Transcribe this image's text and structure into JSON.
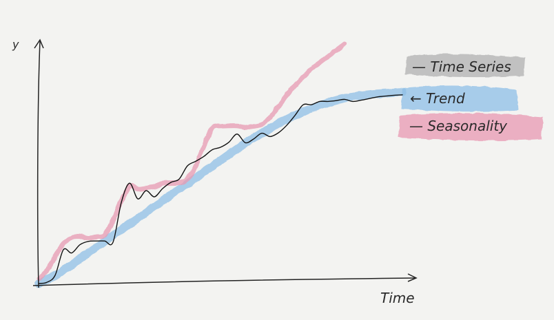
{
  "chart_data": {
    "type": "line",
    "xlabel": "Time",
    "ylabel": "y",
    "grid": false,
    "legend_placement": "right",
    "series": [
      {
        "name": "Time Series",
        "color": "#111111",
        "x": [
          0,
          2,
          4,
          6,
          8,
          10,
          12,
          14,
          16,
          18,
          20,
          22,
          24,
          26,
          28,
          30,
          32,
          34,
          36,
          38,
          40,
          42,
          44,
          46,
          48,
          50,
          52,
          54,
          56,
          58,
          60,
          62,
          64,
          66,
          68,
          70,
          72,
          74,
          76,
          78,
          80,
          82,
          84,
          86,
          88
        ],
        "y": [
          0.0,
          0.3,
          2.0,
          8.2,
          7.4,
          9.4,
          10.2,
          10.3,
          10.3,
          10.0,
          19.6,
          24.3,
          20.5,
          22.5,
          21.0,
          23.0,
          24.5,
          25.3,
          28.5,
          29.6,
          30.8,
          32.4,
          33.0,
          34.2,
          36.2,
          34.1,
          35.0,
          36.4,
          35.6,
          36.5,
          38.3,
          40.7,
          43.3,
          43.3,
          44.1,
          44.1,
          44.3,
          44.6,
          44.1,
          44.4,
          44.8,
          45.2,
          45.4,
          45.6,
          45.7
        ]
      },
      {
        "name": "Trend",
        "color": "#8fbfe6",
        "x": [
          0,
          5,
          10,
          15,
          20,
          25,
          30,
          35,
          40,
          45,
          50,
          55,
          60,
          65,
          70,
          75,
          80,
          85,
          88
        ],
        "y": [
          0.0,
          2.5,
          6.0,
          9.5,
          13.0,
          16.5,
          20.0,
          23.5,
          27.0,
          30.5,
          34.0,
          37.0,
          39.8,
          42.0,
          43.8,
          45.1,
          45.8,
          46.2,
          46.4
        ]
      },
      {
        "name": "Seasonality",
        "color": "#e79ab2",
        "x": [
          0,
          2,
          4,
          6,
          8,
          10,
          12,
          14,
          16,
          18,
          20,
          22,
          24,
          26,
          28,
          30,
          32,
          34,
          36,
          38,
          40,
          42,
          44,
          46,
          48,
          50,
          52,
          54,
          56,
          58,
          60,
          62,
          64,
          66,
          68,
          70,
          72,
          74
        ],
        "y": [
          1.2,
          3.0,
          6.5,
          9.5,
          11.2,
          11.4,
          11.0,
          11.3,
          11.8,
          15.2,
          20.0,
          23.4,
          22.9,
          23.1,
          23.4,
          24.3,
          24.4,
          24.5,
          25.3,
          28.5,
          33.3,
          37.8,
          38.1,
          38.2,
          38.2,
          37.9,
          38.1,
          38.6,
          40.3,
          42.8,
          45.6,
          48.0,
          50.0,
          52.0,
          53.5,
          55.0,
          56.5,
          58.0
        ]
      }
    ]
  },
  "legend": {
    "time_series": "— Time Series",
    "trend": "← Trend",
    "seasonality": "— Seasonality"
  }
}
